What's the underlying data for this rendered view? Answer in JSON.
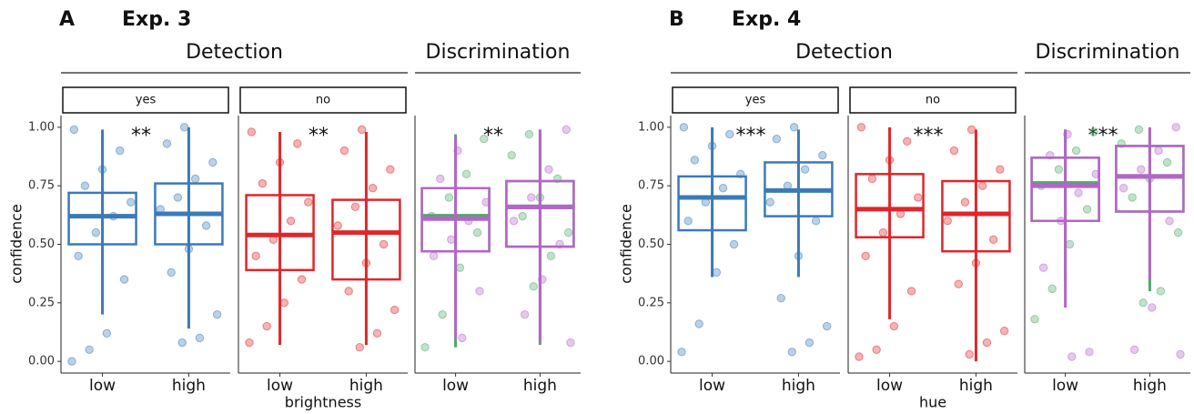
{
  "chart_data": [
    {
      "type": "box",
      "panel_label": "A",
      "title": "Exp. 3",
      "ylabel": "confidence",
      "xlabel": "brightness",
      "ylim": [
        -0.05,
        1.05
      ],
      "yticks": [
        {
          "value": 0,
          "label": "0.00"
        },
        {
          "value": 0.25,
          "label": "0.25"
        },
        {
          "value": 0.5,
          "label": "0.50"
        },
        {
          "value": 0.75,
          "label": "0.75"
        },
        {
          "value": 1,
          "label": "1.00"
        }
      ],
      "groups": [
        {
          "header": "Detection",
          "facets": [
            {
              "strip": "yes",
              "categories": [
                "low",
                "high"
              ],
              "significance": "**",
              "series": [
                {
                  "color": "#3a7ab8",
                  "boxes": [
                    {
                      "whisker_low": 0.2,
                      "q1": 0.5,
                      "median": 0.62,
                      "q3": 0.72,
                      "whisker_high": 0.99,
                      "points": [
                        0.0,
                        0.05,
                        0.12,
                        0.35,
                        0.45,
                        0.55,
                        0.62,
                        0.68,
                        0.75,
                        0.82,
                        0.9,
                        0.99
                      ]
                    },
                    {
                      "whisker_low": 0.14,
                      "q1": 0.5,
                      "median": 0.63,
                      "q3": 0.76,
                      "whisker_high": 1.0,
                      "points": [
                        0.08,
                        0.1,
                        0.2,
                        0.38,
                        0.48,
                        0.58,
                        0.65,
                        0.7,
                        0.78,
                        0.85,
                        0.93,
                        1.0
                      ]
                    }
                  ]
                }
              ]
            },
            {
              "strip": "no",
              "categories": [
                "low",
                "high"
              ],
              "significance": "**",
              "series": [
                {
                  "color": "#e0262a",
                  "boxes": [
                    {
                      "whisker_low": 0.07,
                      "q1": 0.39,
                      "median": 0.54,
                      "q3": 0.71,
                      "whisker_high": 0.98,
                      "points": [
                        0.08,
                        0.15,
                        0.25,
                        0.35,
                        0.45,
                        0.52,
                        0.6,
                        0.68,
                        0.76,
                        0.85,
                        0.93,
                        0.98
                      ]
                    },
                    {
                      "whisker_low": 0.07,
                      "q1": 0.35,
                      "median": 0.55,
                      "q3": 0.69,
                      "whisker_high": 0.98,
                      "points": [
                        0.06,
                        0.12,
                        0.22,
                        0.3,
                        0.42,
                        0.5,
                        0.58,
                        0.66,
                        0.74,
                        0.82,
                        0.9,
                        0.99
                      ]
                    }
                  ]
                }
              ]
            }
          ]
        },
        {
          "header": "Discrimination",
          "facets": [
            {
              "categories": [
                "low",
                "high"
              ],
              "significance": "**",
              "series": [
                {
                  "color": "#4daa6a",
                  "boxes": [
                    {
                      "whisker_low": 0.06,
                      "q1": 0.47,
                      "median": 0.62,
                      "q3": 0.74,
                      "whisker_high": 0.97,
                      "points": [
                        0.06,
                        0.2,
                        0.4,
                        0.55,
                        0.62,
                        0.7,
                        0.8,
                        0.95
                      ]
                    },
                    {
                      "whisker_low": 0.07,
                      "q1": 0.49,
                      "median": 0.66,
                      "q3": 0.77,
                      "whisker_high": 0.99,
                      "points": [
                        0.32,
                        0.45,
                        0.55,
                        0.62,
                        0.7,
                        0.78,
                        0.88,
                        0.97
                      ]
                    }
                  ]
                },
                {
                  "color": "#b565c8",
                  "boxes": [
                    {
                      "whisker_low": 0.1,
                      "q1": 0.47,
                      "median": 0.61,
                      "q3": 0.74,
                      "whisker_high": 0.96,
                      "points": [
                        0.1,
                        0.3,
                        0.45,
                        0.52,
                        0.6,
                        0.68,
                        0.78,
                        0.9
                      ]
                    },
                    {
                      "whisker_low": 0.08,
                      "q1": 0.49,
                      "median": 0.66,
                      "q3": 0.77,
                      "whisker_high": 0.99,
                      "points": [
                        0.08,
                        0.2,
                        0.35,
                        0.5,
                        0.6,
                        0.7,
                        0.82,
                        0.99
                      ]
                    }
                  ]
                }
              ]
            }
          ]
        }
      ]
    },
    {
      "type": "box",
      "panel_label": "B",
      "title": "Exp. 4",
      "ylabel": "confidence",
      "xlabel": "hue",
      "ylim": [
        -0.05,
        1.05
      ],
      "yticks": [
        {
          "value": 0,
          "label": "0.00"
        },
        {
          "value": 0.25,
          "label": "0.25"
        },
        {
          "value": 0.5,
          "label": "0.50"
        },
        {
          "value": 0.75,
          "label": "0.75"
        },
        {
          "value": 1,
          "label": "1.00"
        }
      ],
      "groups": [
        {
          "header": "Detection",
          "facets": [
            {
              "strip": "yes",
              "categories": [
                "low",
                "high"
              ],
              "significance": "***",
              "series": [
                {
                  "color": "#3a7ab8",
                  "boxes": [
                    {
                      "whisker_low": 0.36,
                      "q1": 0.56,
                      "median": 0.7,
                      "q3": 0.79,
                      "whisker_high": 1.0,
                      "points": [
                        0.04,
                        0.16,
                        0.38,
                        0.5,
                        0.6,
                        0.68,
                        0.74,
                        0.8,
                        0.86,
                        0.92,
                        0.97,
                        1.0
                      ]
                    },
                    {
                      "whisker_low": 0.36,
                      "q1": 0.62,
                      "median": 0.73,
                      "q3": 0.85,
                      "whisker_high": 0.99,
                      "points": [
                        0.04,
                        0.08,
                        0.15,
                        0.27,
                        0.45,
                        0.6,
                        0.68,
                        0.75,
                        0.82,
                        0.88,
                        0.95,
                        1.0
                      ]
                    }
                  ]
                }
              ]
            },
            {
              "strip": "no",
              "categories": [
                "low",
                "high"
              ],
              "significance": "***",
              "series": [
                {
                  "color": "#e0262a",
                  "boxes": [
                    {
                      "whisker_low": 0.18,
                      "q1": 0.53,
                      "median": 0.65,
                      "q3": 0.8,
                      "whisker_high": 1.0,
                      "points": [
                        0.02,
                        0.05,
                        0.15,
                        0.3,
                        0.45,
                        0.55,
                        0.63,
                        0.7,
                        0.78,
                        0.86,
                        0.94,
                        1.0
                      ]
                    },
                    {
                      "whisker_low": 0.0,
                      "q1": 0.47,
                      "median": 0.63,
                      "q3": 0.77,
                      "whisker_high": 0.99,
                      "points": [
                        0.03,
                        0.08,
                        0.13,
                        0.33,
                        0.42,
                        0.52,
                        0.6,
                        0.68,
                        0.75,
                        0.82,
                        0.9,
                        0.99
                      ]
                    }
                  ]
                }
              ]
            }
          ]
        },
        {
          "header": "Discrimination",
          "facets": [
            {
              "categories": [
                "low",
                "high"
              ],
              "significance": "***",
              "series": [
                {
                  "color": "#4daa6a",
                  "boxes": [
                    {
                      "whisker_low": 0.35,
                      "q1": 0.6,
                      "median": 0.76,
                      "q3": 0.87,
                      "whisker_high": 0.99,
                      "points": [
                        0.18,
                        0.31,
                        0.5,
                        0.65,
                        0.75,
                        0.82,
                        0.9,
                        0.98
                      ]
                    },
                    {
                      "whisker_low": 0.3,
                      "q1": 0.64,
                      "median": 0.79,
                      "q3": 0.92,
                      "whisker_high": 0.99,
                      "points": [
                        0.25,
                        0.3,
                        0.55,
                        0.7,
                        0.78,
                        0.85,
                        0.93,
                        0.99
                      ]
                    }
                  ]
                },
                {
                  "color": "#b565c8",
                  "boxes": [
                    {
                      "whisker_low": 0.23,
                      "q1": 0.6,
                      "median": 0.75,
                      "q3": 0.87,
                      "whisker_high": 0.99,
                      "points": [
                        0.02,
                        0.04,
                        0.4,
                        0.6,
                        0.72,
                        0.8,
                        0.88,
                        0.97
                      ]
                    },
                    {
                      "whisker_low": 0.35,
                      "q1": 0.64,
                      "median": 0.79,
                      "q3": 0.92,
                      "whisker_high": 1.0,
                      "points": [
                        0.03,
                        0.05,
                        0.23,
                        0.6,
                        0.74,
                        0.82,
                        0.9,
                        1.0
                      ]
                    }
                  ]
                }
              ]
            }
          ]
        }
      ]
    }
  ]
}
